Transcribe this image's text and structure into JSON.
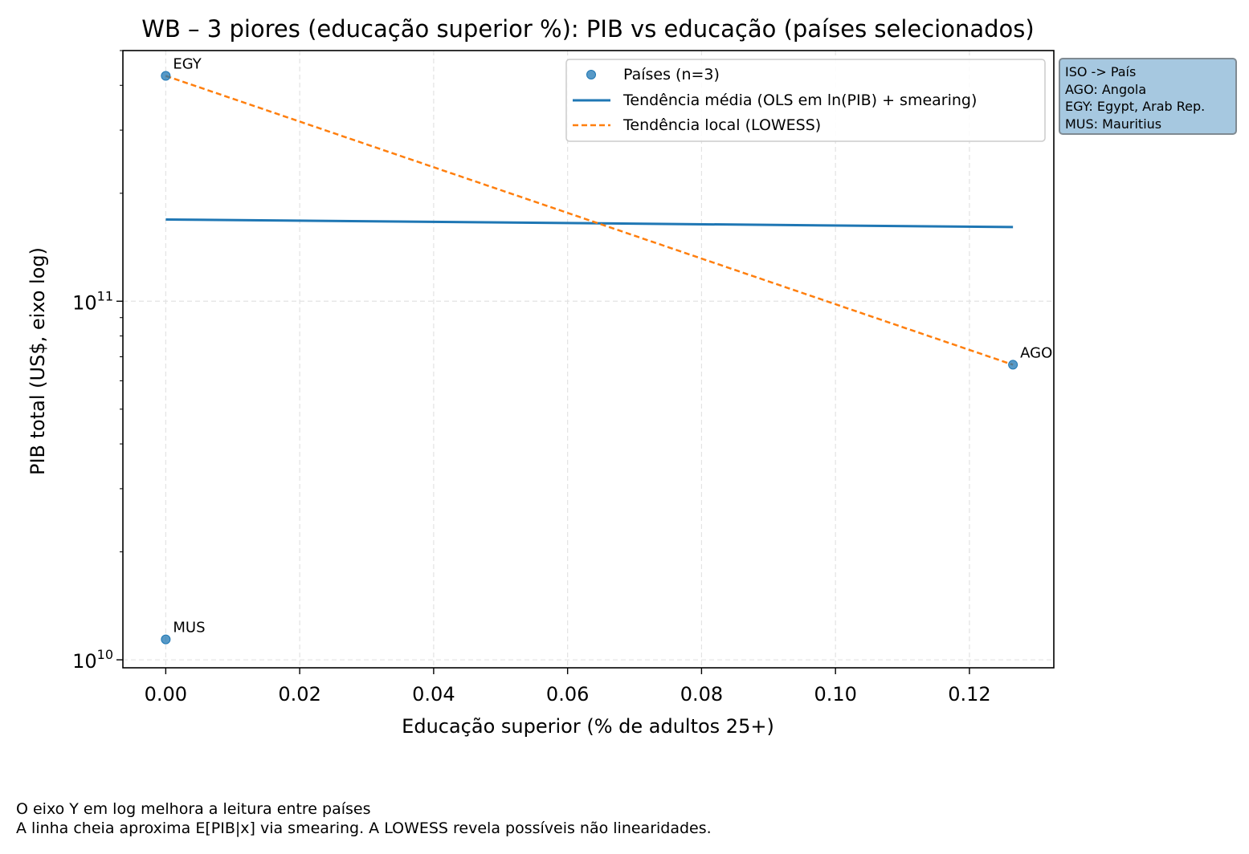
{
  "chart_data": {
    "type": "scatter",
    "title": "WB – 3 piores (educação superior %): PIB vs educação (países selecionados)",
    "xlabel": "Educação superior (% de adultos 25+)",
    "ylabel": "PIB total (US$, eixo log)",
    "xlim": [
      -0.0064,
      0.1326
    ],
    "ylim": [
      9500000000.0,
      500000000000.0
    ],
    "y_scale": "log",
    "x_ticks": [
      0.0,
      0.02,
      0.04,
      0.06,
      0.08,
      0.1,
      0.12
    ],
    "x_tick_labels": [
      "0.00",
      "0.02",
      "0.04",
      "0.06",
      "0.08",
      "0.10",
      "0.12"
    ],
    "y_ticks": [
      {
        "value": 10000000000.0,
        "base": "10",
        "exp": "10"
      },
      {
        "value": 100000000000.0,
        "base": "10",
        "exp": "11"
      }
    ],
    "grid": true,
    "legend_position": "top-right",
    "series": [
      {
        "name": "Países (n=3)",
        "kind": "points",
        "color": "#1f77b4",
        "points": [
          {
            "label": "EGY",
            "x": 0.0,
            "y": 425000000000.0
          },
          {
            "label": "MUS",
            "x": 0.0,
            "y": 11400000000.0
          },
          {
            "label": "AGO",
            "x": 0.1265,
            "y": 66500000000.0
          }
        ]
      },
      {
        "name": "Tendência média (OLS em ln(PIB) + smearing)",
        "kind": "line",
        "color": "#1f77b4",
        "style": "solid",
        "x": [
          0.0,
          0.1265
        ],
        "y": [
          169000000000.0,
          161000000000.0
        ]
      },
      {
        "name": "Tendência local (LOWESS)",
        "kind": "line",
        "color": "#ff7f0e",
        "style": "dashed",
        "x": [
          0.0,
          0.1265
        ],
        "y": [
          425000000000.0,
          66500000000.0
        ]
      }
    ]
  },
  "iso_box": {
    "lines": [
      "ISO -> País",
      "AGO: Angola",
      "EGY: Egypt, Arab Rep.",
      "MUS: Mauritius"
    ]
  },
  "footnote": {
    "line1": "O eixo Y em log melhora a leitura entre países",
    "line2": "A linha cheia aproxima E[PIB|x] via smearing. A LOWESS revela possíveis não linearidades."
  }
}
